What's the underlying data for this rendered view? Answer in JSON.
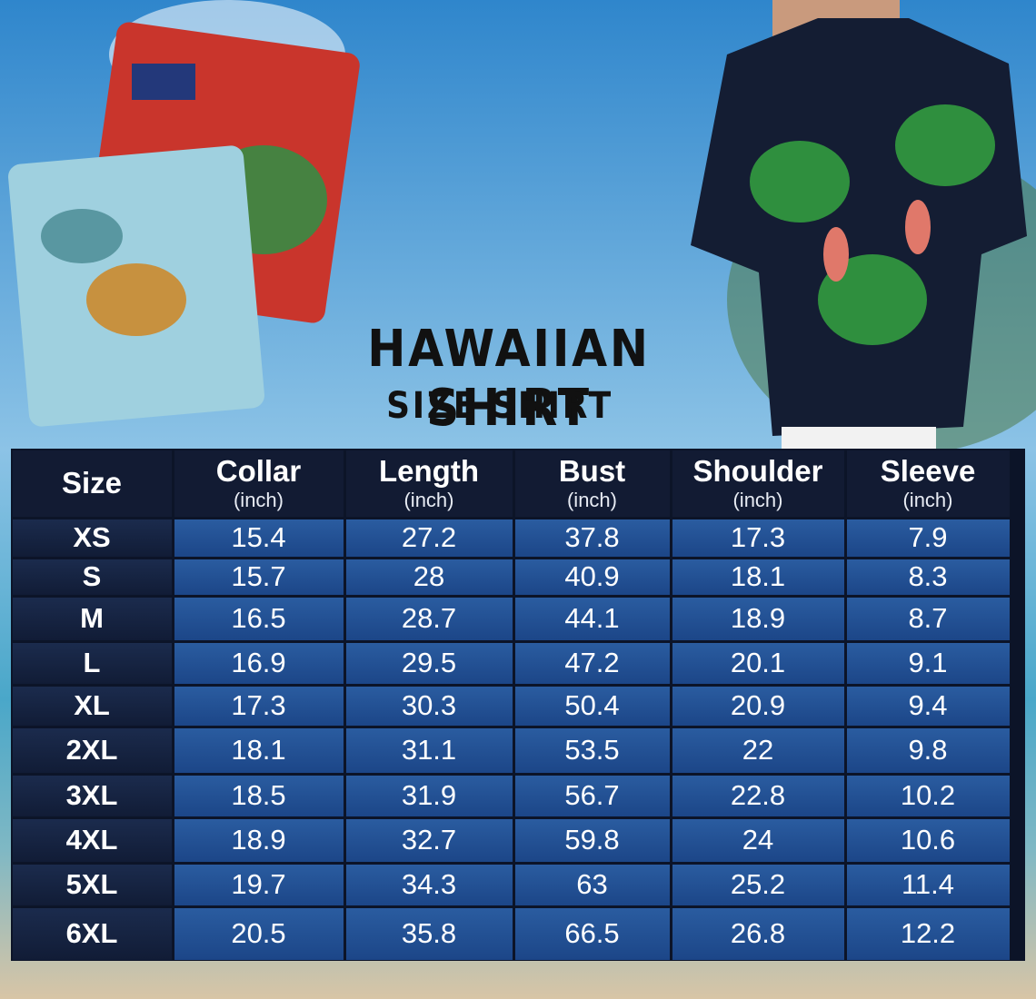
{
  "header": {
    "title": "HAWAIIAN SHIRT",
    "subtitle": "SIZE SHIRT"
  },
  "table": {
    "columns": [
      {
        "name": "Size"
      },
      {
        "name": "Collar",
        "unit": "(inch)"
      },
      {
        "name": "Length",
        "unit": "(inch)"
      },
      {
        "name": "Bust",
        "unit": "(inch)"
      },
      {
        "name": "Shoulder",
        "unit": "(inch)"
      },
      {
        "name": "Sleeve",
        "unit": "(inch)"
      }
    ],
    "rows": [
      [
        "XS",
        15.4,
        27.2,
        37.8,
        17.3,
        7.9
      ],
      [
        "S",
        15.7,
        28,
        40.9,
        18.1,
        8.3
      ],
      [
        "M",
        16.5,
        28.7,
        44.1,
        18.9,
        8.7
      ],
      [
        "L",
        16.9,
        29.5,
        47.2,
        20.1,
        9.1
      ],
      [
        "XL",
        17.3,
        30.3,
        50.4,
        20.9,
        9.4
      ],
      [
        "2XL",
        18.1,
        31.1,
        53.5,
        22,
        9.8
      ],
      [
        "3XL",
        18.5,
        31.9,
        56.7,
        22.8,
        10.2
      ],
      [
        "4XL",
        18.9,
        32.7,
        59.8,
        24,
        10.6
      ],
      [
        "5XL",
        19.7,
        34.3,
        63,
        25.2,
        11.4
      ],
      [
        "6XL",
        20.5,
        35.8,
        66.5,
        26.8,
        12.2
      ]
    ]
  }
}
